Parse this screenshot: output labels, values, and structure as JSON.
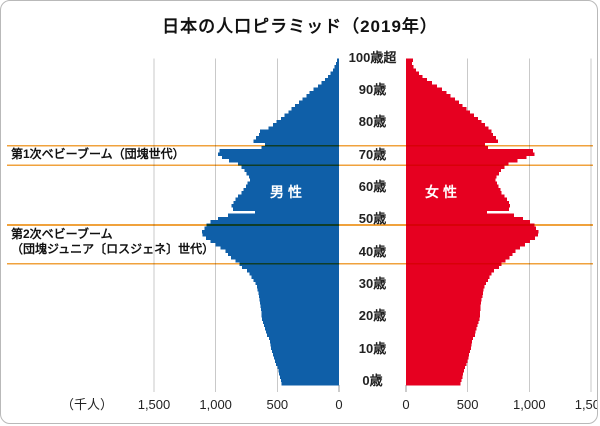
{
  "title": "日本の人口ピラミッド（2019年）",
  "unit_label": "（千人）",
  "male_label": "男性",
  "female_label": "女性",
  "annotations": {
    "boom1": {
      "label": "第1次ベビーブーム（団塊世代）",
      "age_from": 68,
      "age_to": 74
    },
    "boom2": {
      "label_line1": "第2次ベビーブーム",
      "label_line2": "（団塊ジュニア〔ロスジェネ〕世代）",
      "age_from": 37.5,
      "age_to": 49.5
    }
  },
  "colors": {
    "male": "#0f5fa8",
    "female": "#e60020",
    "annotation_line": "#f0a23c",
    "grid": "#c9c9c9",
    "tick": "#9a9a9a",
    "text": "#1a1a1a"
  },
  "chart_data": {
    "type": "bar",
    "subtype": "population-pyramid",
    "title": "日本の人口ピラミッド（2019年）",
    "unit": "千人 (thousands of persons)",
    "age_axis": {
      "min": 0,
      "max": 100,
      "tick_step": 10,
      "tick_labels": [
        "0歳",
        "10歳",
        "20歳",
        "30歳",
        "40歳",
        "50歳",
        "60歳",
        "70歳",
        "80歳",
        "90歳",
        "100歳超"
      ]
    },
    "x_axis": {
      "lim": [
        0,
        1500
      ],
      "ticks": [
        0,
        500,
        1000,
        1500
      ],
      "tick_labels": [
        "0",
        "500",
        "1,000",
        "1,500"
      ],
      "grid": true
    },
    "legend_position": "on-bars",
    "series": [
      {
        "name": "男性",
        "values": [
          465,
          472,
          478,
          485,
          492,
          500,
          512,
          520,
          528,
          536,
          545,
          550,
          555,
          560,
          568,
          585,
          592,
          600,
          608,
          616,
          625,
          628,
          630,
          632,
          636,
          640,
          644,
          649,
          654,
          660,
          665,
          678,
          692,
          708,
          725,
          745,
          785,
          805,
          840,
          875,
          900,
          920,
          960,
          1000,
          1040,
          1080,
          1105,
          1110,
          1090,
          1075,
          1040,
          980,
          900,
          680,
          860,
          870,
          855,
          840,
          820,
          790,
          775,
          755,
          740,
          720,
          730,
          750,
          765,
          790,
          820,
          890,
          950,
          980,
          970,
          630,
          600,
          695,
          675,
          650,
          640,
          570,
          535,
          505,
          470,
          440,
          410,
          385,
          355,
          325,
          295,
          265,
          240,
          205,
          170,
          140,
          112,
          88,
          68,
          50,
          36,
          25,
          18
        ]
      },
      {
        "name": "女性",
        "values": [
          443,
          450,
          457,
          463,
          470,
          477,
          490,
          497,
          505,
          512,
          520,
          525,
          530,
          536,
          543,
          558,
          565,
          572,
          580,
          588,
          596,
          599,
          601,
          603,
          606,
          610,
          614,
          619,
          624,
          630,
          638,
          650,
          663,
          678,
          694,
          715,
          755,
          775,
          808,
          840,
          865,
          888,
          925,
          965,
          1005,
          1045,
          1070,
          1075,
          1055,
          1040,
          1005,
          950,
          875,
          655,
          835,
          845,
          835,
          820,
          800,
          775,
          765,
          750,
          738,
          725,
          735,
          755,
          772,
          798,
          830,
          905,
          975,
          1040,
          1030,
          665,
          640,
          745,
          728,
          705,
          695,
          670,
          640,
          612,
          583,
          552,
          518,
          490,
          458,
          428,
          396,
          362,
          330,
          290,
          250,
          210,
          170,
          135,
          106,
          82,
          62,
          47,
          58
        ]
      }
    ],
    "notable_features": [
      "第1次ベビーブーム（団塊世代）: bulge around ages 69-72",
      "第2次ベビーブーム（団塊ジュニア〔ロスジェネ〕世代）: bulge around ages 44-49",
      "丙午(1966)による単年の凹み: age 53",
      "終戦前後の出生減: ages 73-74"
    ]
  }
}
